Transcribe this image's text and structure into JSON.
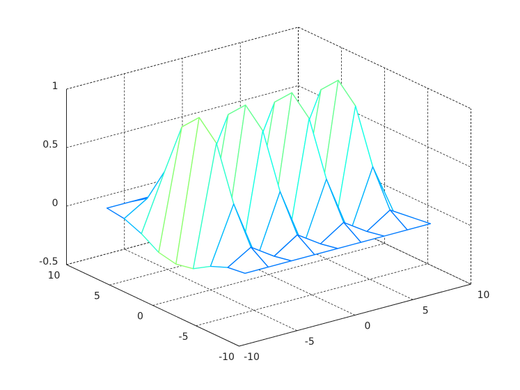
{
  "chart_data": {
    "type": "mesh3d",
    "colormap": "jet",
    "grid": true,
    "x": [
      -8,
      -6,
      -4,
      -2,
      0,
      2,
      4,
      6,
      8
    ],
    "y": [
      -8,
      -6,
      -4,
      -2,
      0,
      2,
      4,
      6,
      8
    ],
    "z": [
      [
        0,
        0,
        0,
        0,
        0,
        0,
        0,
        0,
        0
      ],
      [
        -0.02,
        0.1,
        -0.03,
        0.1,
        -0.03,
        0.1,
        -0.03,
        0.1,
        -0.02
      ],
      [
        -0.08,
        0.4,
        -0.12,
        0.4,
        -0.12,
        0.4,
        -0.12,
        0.4,
        -0.08
      ],
      [
        -0.17,
        0.85,
        -0.26,
        0.85,
        -0.26,
        0.85,
        -0.26,
        0.85,
        -0.17
      ],
      [
        -0.2,
        1,
        -0.3,
        1,
        -0.3,
        1,
        -0.3,
        1,
        -0.2
      ],
      [
        -0.17,
        0.85,
        -0.26,
        0.85,
        -0.26,
        0.85,
        -0.26,
        0.85,
        -0.17
      ],
      [
        -0.08,
        0.4,
        -0.12,
        0.4,
        -0.12,
        0.4,
        -0.12,
        0.4,
        -0.08
      ],
      [
        -0.02,
        0.1,
        -0.03,
        0.1,
        -0.03,
        0.1,
        -0.03,
        0.1,
        -0.02
      ],
      [
        0,
        0,
        0,
        0,
        0,
        0,
        0,
        0,
        0
      ]
    ],
    "xlim": [
      -10,
      10
    ],
    "xticks": [
      -10,
      -5,
      0,
      5,
      10
    ],
    "ylim": [
      -10,
      10
    ],
    "yticks": [
      -10,
      -5,
      0,
      5,
      10
    ],
    "zlim": [
      -0.5,
      1
    ],
    "zticks": [
      -0.5,
      0,
      0.5,
      1
    ]
  }
}
